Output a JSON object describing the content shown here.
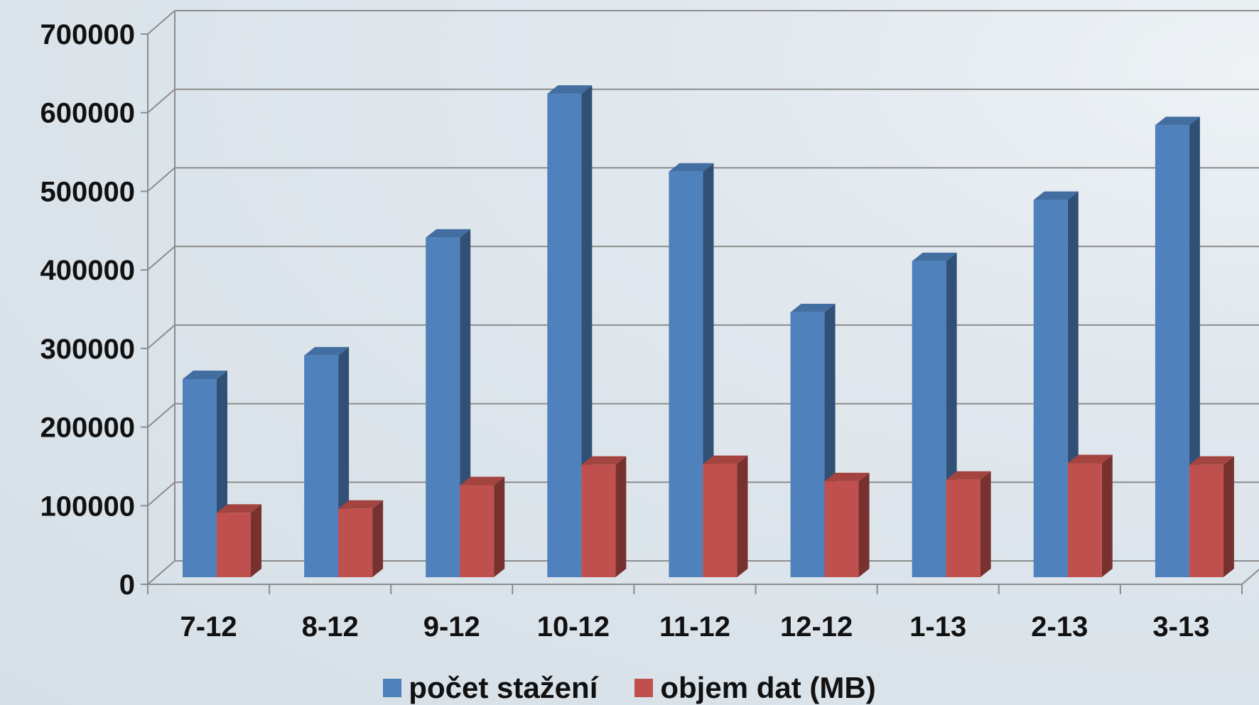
{
  "chart_data": {
    "type": "bar",
    "style": "3d-clustered-column",
    "categories": [
      "7-12",
      "8-12",
      "9-12",
      "10-12",
      "11-12",
      "12-12",
      "1-13",
      "2-13",
      "3-13"
    ],
    "series": [
      {
        "name": "počet stažení",
        "color": "#4f81bd",
        "values": [
          252000,
          282000,
          432000,
          615000,
          516000,
          337000,
          402000,
          480000,
          575000
        ]
      },
      {
        "name": "objem dat (MB)",
        "color": "#c0504d",
        "values": [
          82000,
          87000,
          117000,
          143000,
          144000,
          122000,
          124000,
          145000,
          143000
        ]
      }
    ],
    "yticks": [
      "0",
      "100000",
      "200000",
      "300000",
      "400000",
      "500000",
      "600000",
      "700000"
    ],
    "ylim": [
      0,
      700000
    ],
    "grid": true,
    "legend_position": "bottom"
  }
}
